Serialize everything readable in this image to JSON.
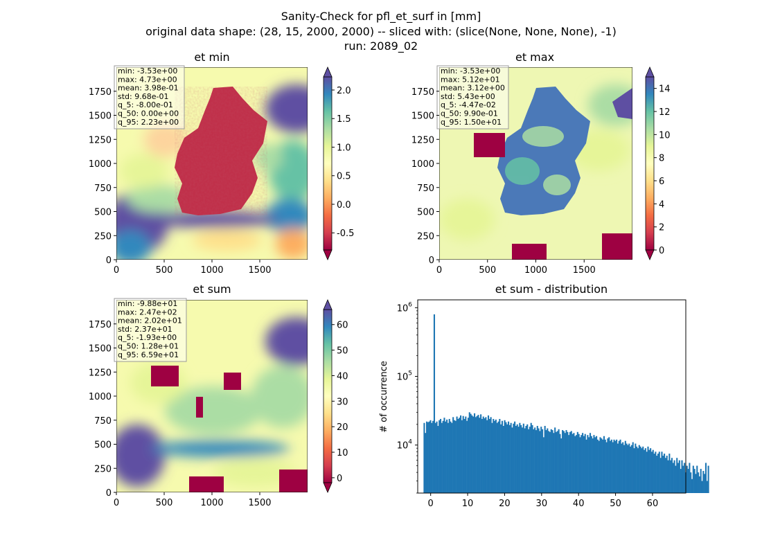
{
  "figure": {
    "title_lines": [
      "Sanity-Check for pfl_et_surf in [mm]",
      "original data shape: (28, 15, 2000, 2000) -- sliced with: (slice(None, None, None), -1)",
      "run: 2089_02"
    ]
  },
  "chart_data": [
    {
      "type": "heatmap",
      "title": "et min",
      "xticks": [
        "0",
        "500",
        "1000",
        "1500"
      ],
      "yticks": [
        "0",
        "250",
        "500",
        "750",
        "1000",
        "1250",
        "1500",
        "1750"
      ],
      "xlim": [
        0,
        2000
      ],
      "ylim": [
        0,
        2000
      ],
      "colorbar": {
        "ticks": [
          "-0.5",
          "0.0",
          "0.5",
          "1.0",
          "1.5",
          "2.0"
        ],
        "range": [
          -0.8,
          2.23
        ],
        "colormap": "Spectral",
        "extend": "both"
      },
      "stats": [
        "min: -3.53e+00",
        "max: 4.73e+00",
        "mean: 3.98e-01",
        "std: 9.68e-01",
        "q_5: -8.00e-01",
        "q_50: 0.00e+00",
        "q_95: 2.23e+00"
      ]
    },
    {
      "type": "heatmap",
      "title": "et max",
      "xticks": [
        "0",
        "500",
        "1000",
        "1500"
      ],
      "yticks": [
        "0",
        "250",
        "500",
        "750",
        "1000",
        "1250",
        "1500",
        "1750"
      ],
      "xlim": [
        0,
        2000
      ],
      "ylim": [
        0,
        2000
      ],
      "colorbar": {
        "ticks": [
          "0",
          "2",
          "4",
          "6",
          "8",
          "10",
          "12",
          "14"
        ],
        "range": [
          0,
          15
        ],
        "colormap": "Spectral",
        "extend": "both"
      },
      "stats": [
        "min: -3.53e+00",
        "max: 5.12e+01",
        "mean: 3.12e+00",
        "std: 5.43e+00",
        "q_5: -4.47e-02",
        "q_50: 9.90e-01",
        "q_95: 1.50e+01"
      ]
    },
    {
      "type": "heatmap",
      "title": "et sum",
      "xticks": [
        "0",
        "500",
        "1000",
        "1500"
      ],
      "yticks": [
        "0",
        "250",
        "500",
        "750",
        "1000",
        "1250",
        "1500",
        "1750"
      ],
      "xlim": [
        0,
        2000
      ],
      "ylim": [
        0,
        2000
      ],
      "colorbar": {
        "ticks": [
          "0",
          "10",
          "20",
          "30",
          "40",
          "50",
          "60"
        ],
        "range": [
          -1.93,
          65.9
        ],
        "colormap": "Spectral",
        "extend": "both"
      },
      "stats": [
        "min: -9.88e+01",
        "max: 2.47e+02",
        "mean: 2.02e+01",
        "std: 2.37e+01",
        "q_5: -1.93e+00",
        "q_50: 1.28e+01",
        "q_95: 6.59e+01"
      ]
    },
    {
      "type": "bar",
      "title": "et sum - distribution",
      "ylabel": "# of occurrence",
      "yscale": "log",
      "xlim": [
        -3.5,
        69
      ],
      "ylim": [
        2000,
        1300000
      ],
      "xticks": [
        0,
        10,
        20,
        30,
        40,
        50,
        60
      ],
      "yticks": [
        {
          "value": 10000,
          "base": "10",
          "exp": "4"
        },
        {
          "value": 100000,
          "base": "10",
          "exp": "5"
        },
        {
          "value": 1000000,
          "base": "10",
          "exp": "6"
        }
      ],
      "bin_start": -1.93,
      "bin_width": 0.34,
      "color": "#1f77b4",
      "counts": [
        21000,
        15000,
        22000,
        21500,
        22000,
        23000,
        21000,
        22500,
        800000,
        21000,
        22000,
        19000,
        23000,
        24000,
        21000,
        22500,
        25000,
        22000,
        23500,
        21000,
        24000,
        22000,
        21000,
        25500,
        23000,
        22500,
        26000,
        24000,
        25000,
        27000,
        23000,
        26500,
        24000,
        26000,
        22500,
        25000,
        30000,
        28500,
        27000,
        26000,
        29000,
        25500,
        26500,
        27500,
        25000,
        28000,
        24000,
        26000,
        24500,
        25500,
        23000,
        27000,
        24000,
        25500,
        21000,
        24000,
        22500,
        23500,
        21000,
        22000,
        24000,
        20000,
        22500,
        19000,
        23000,
        21500,
        20000,
        22000,
        19500,
        21000,
        18000,
        20500,
        22000,
        19000,
        20000,
        18500,
        21000,
        19500,
        18000,
        20500,
        17500,
        19000,
        20000,
        17000,
        18500,
        21000,
        19500,
        17000,
        18000,
        16500,
        19000,
        17500,
        16000,
        18500,
        17000,
        13000,
        19000,
        16500,
        17500,
        16000,
        15500,
        17000,
        16500,
        15000,
        18000,
        15500,
        16000,
        17000,
        14500,
        12500,
        16500,
        16000,
        15000,
        16500,
        15500,
        14000,
        15500,
        16000,
        14500,
        15000,
        13500,
        14000,
        15500,
        14500,
        13000,
        14000,
        15000,
        13500,
        14500,
        12000,
        14000,
        13000,
        15000,
        13500,
        12500,
        14000,
        13000,
        13500,
        12000,
        11500,
        13000,
        12500,
        12000,
        13500,
        12000,
        11000,
        12500,
        13000,
        11500,
        12000,
        11000,
        12000,
        11500,
        12000,
        10500,
        11500,
        12000,
        10500,
        11000,
        10000,
        11500,
        10500,
        10000,
        10500,
        9500,
        10000,
        11000,
        9000,
        10500,
        9500,
        9000,
        10000,
        9500,
        9000,
        9500,
        8500,
        9000,
        8000,
        9500,
        8500,
        9000,
        8000,
        8500,
        7500,
        8000,
        7000,
        7500,
        8000,
        6500,
        8000,
        7000,
        7500,
        6500,
        7000,
        6000,
        7500,
        6000,
        6500,
        5500,
        6000,
        5000,
        6500,
        5500,
        6000,
        4500,
        6000,
        5000,
        5500,
        4000,
        5000,
        4500,
        5500,
        4000,
        3200,
        5000,
        4500,
        3800,
        5000,
        4000,
        3500,
        4500,
        3000,
        4200,
        3800,
        5500,
        3000,
        5000
      ]
    }
  ]
}
